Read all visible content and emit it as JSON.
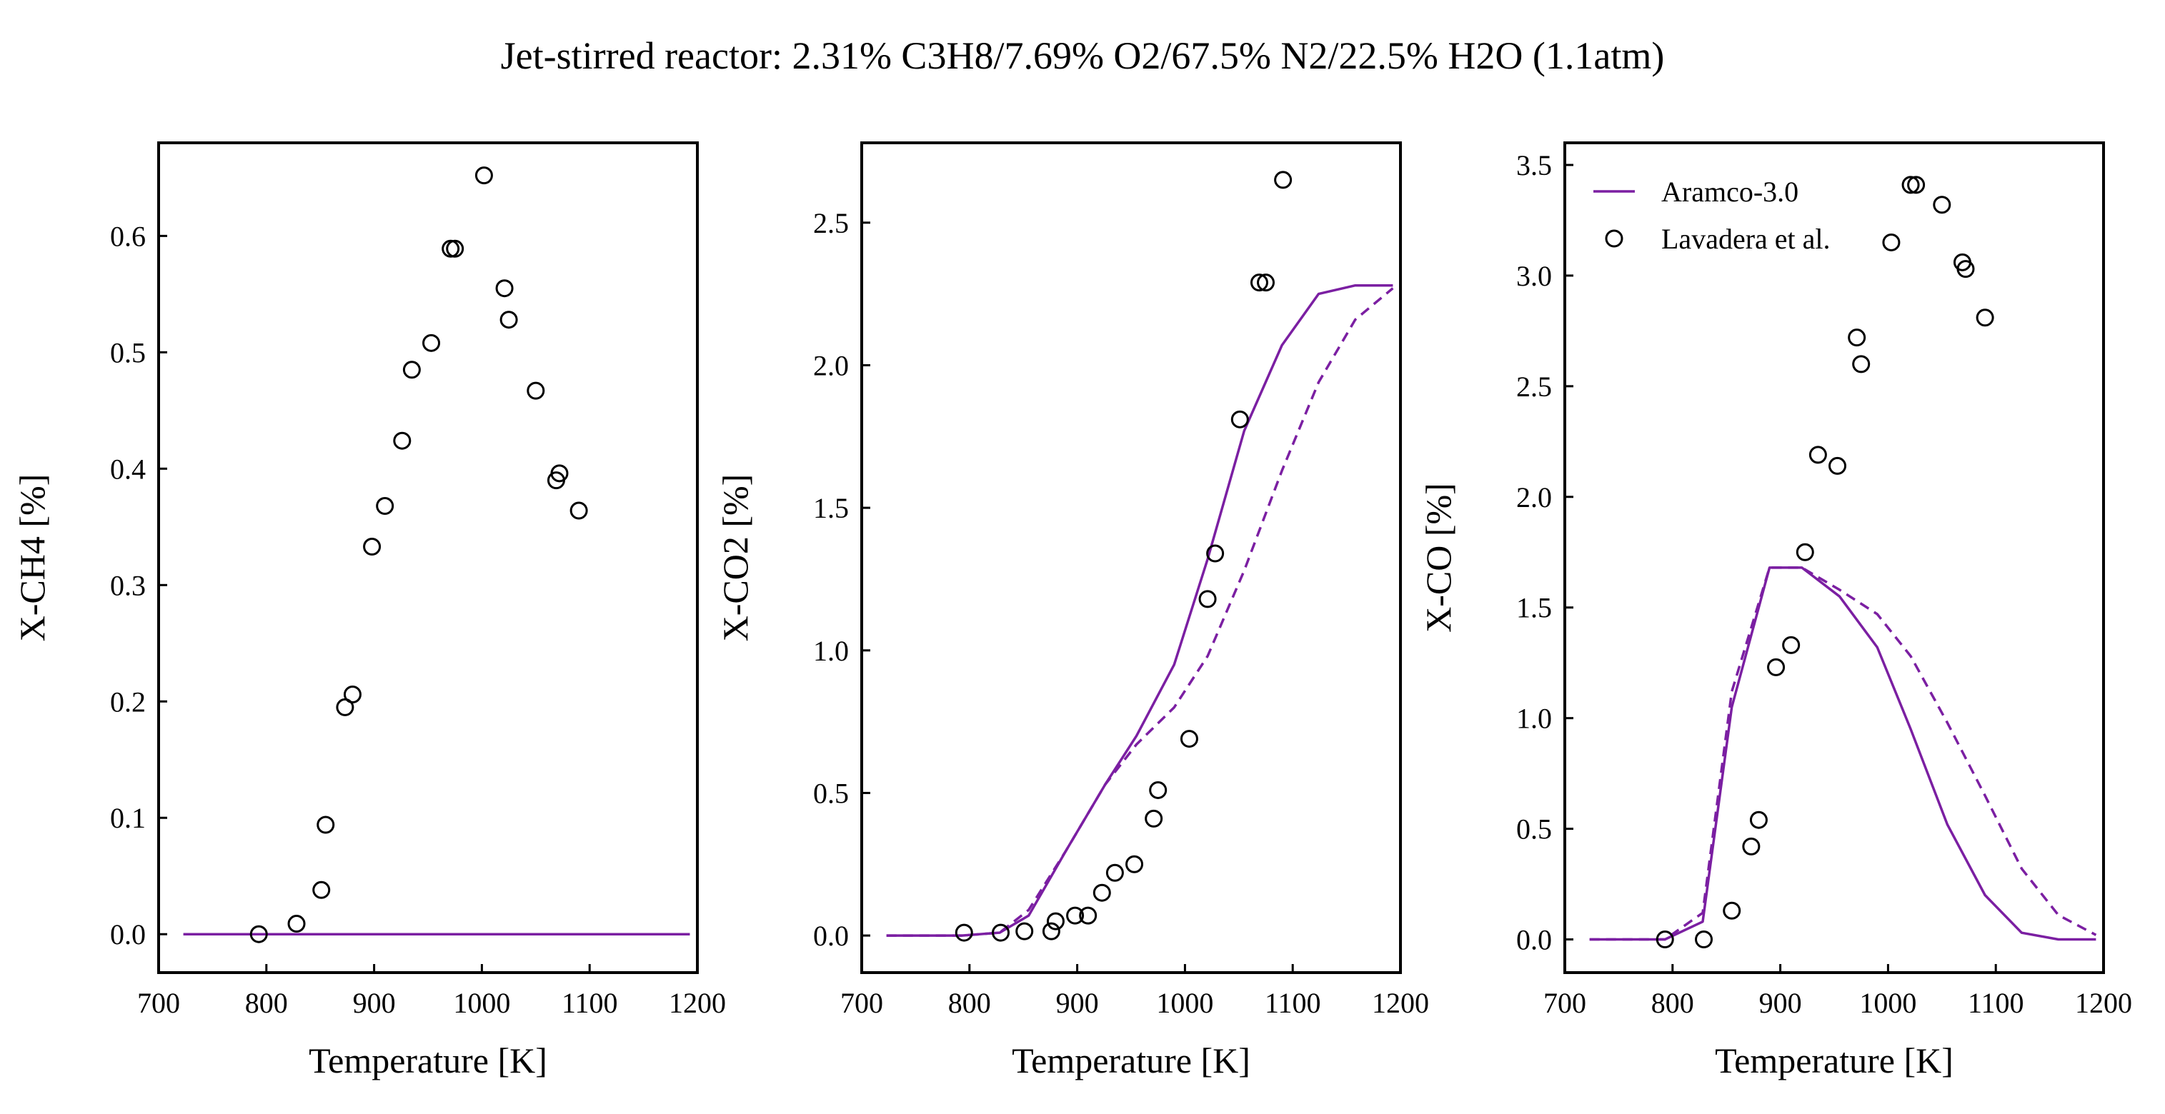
{
  "figure": {
    "title": "Jet-stirred reactor: 2.31% C3H8/7.69% O2/67.5% N2/22.5% H2O (1.1atm)"
  },
  "colors": {
    "model": "#7b1fa2",
    "exp": "#000000"
  },
  "legend": {
    "position": "top-left",
    "panel": 3,
    "entries": [
      "Aramco-3.0",
      "Lavadera et al."
    ]
  },
  "chart_data": [
    {
      "type": "line",
      "ylabel": "X-CH4 [%]",
      "xlabel": "Temperature [K]",
      "xlim": [
        700,
        1200
      ],
      "ylim": [
        -0.033,
        0.68
      ],
      "xticks": [
        700,
        800,
        900,
        1000,
        1100,
        1200
      ],
      "yticks": [
        0.0,
        0.1,
        0.2,
        0.3,
        0.4,
        0.5,
        0.6
      ],
      "grid": false,
      "series": [
        {
          "name": "Aramco-3.0",
          "style": "solid",
          "x": [
            723,
            760,
            800,
            850,
            900,
            950,
            1000,
            1050,
            1100,
            1150,
            1193
          ],
          "y": [
            0,
            0,
            0,
            0,
            0,
            0,
            0,
            0,
            0,
            0,
            0
          ]
        },
        {
          "style": "solid",
          "x": [
            723,
            760,
            800,
            850,
            900,
            950,
            1000,
            1050,
            1100,
            1150,
            1193
          ],
          "y": [
            0,
            0,
            0,
            0,
            0,
            0,
            0,
            0,
            0,
            0,
            0
          ]
        },
        {
          "name": "Lavadera et al.",
          "style": "marker",
          "x": [
            793,
            828,
            851,
            855,
            873,
            880,
            898,
            910,
            926,
            935,
            953,
            971,
            975,
            1002,
            1021,
            1025,
            1050,
            1069,
            1072,
            1090
          ],
          "y": [
            0.0,
            0.009,
            0.038,
            0.094,
            0.195,
            0.206,
            0.333,
            0.368,
            0.424,
            0.485,
            0.508,
            0.589,
            0.589,
            0.652,
            0.555,
            0.528,
            0.467,
            0.39,
            0.396,
            0.364
          ]
        }
      ]
    },
    {
      "type": "line",
      "ylabel": "X-CO2 [%]",
      "xlabel": "Temperature [K]",
      "xlim": [
        700,
        1200
      ],
      "ylim": [
        -0.13,
        2.78
      ],
      "xticks": [
        700,
        800,
        900,
        1000,
        1100,
        1200
      ],
      "yticks": [
        0.0,
        0.5,
        1.0,
        1.5,
        2.0,
        2.5
      ],
      "grid": false,
      "series": [
        {
          "name": "Aramco-3.0",
          "style": "solid",
          "x": [
            723,
            760,
            793,
            828,
            855,
            890,
            926,
            955,
            990,
            1021,
            1055,
            1090,
            1124,
            1158,
            1193
          ],
          "y": [
            0,
            0,
            0,
            0.01,
            0.07,
            0.3,
            0.53,
            0.7,
            0.95,
            1.32,
            1.77,
            2.07,
            2.25,
            2.28,
            2.28
          ]
        },
        {
          "style": "dashed",
          "x": [
            723,
            760,
            793,
            828,
            855,
            890,
            926,
            955,
            990,
            1021,
            1055,
            1090,
            1124,
            1158,
            1193
          ],
          "y": [
            0,
            0,
            0,
            0.01,
            0.09,
            0.3,
            0.53,
            0.67,
            0.8,
            0.98,
            1.28,
            1.63,
            1.94,
            2.16,
            2.27
          ]
        },
        {
          "name": "Lavadera et al.",
          "style": "marker",
          "x": [
            795,
            829,
            851,
            876,
            880,
            898,
            910,
            923,
            935,
            953,
            971,
            975,
            1004,
            1021,
            1028,
            1051,
            1069,
            1075,
            1091
          ],
          "y": [
            0.01,
            0.01,
            0.015,
            0.015,
            0.05,
            0.07,
            0.07,
            0.15,
            0.22,
            0.25,
            0.41,
            0.51,
            0.69,
            1.18,
            1.34,
            1.81,
            2.29,
            2.29,
            2.65
          ]
        }
      ]
    },
    {
      "type": "line",
      "ylabel": "X-CO [%]",
      "xlabel": "Temperature [K]",
      "xlim": [
        700,
        1200
      ],
      "ylim": [
        -0.15,
        3.6
      ],
      "xticks": [
        700,
        800,
        900,
        1000,
        1100,
        1200
      ],
      "yticks": [
        0.0,
        0.5,
        1.0,
        1.5,
        2.0,
        2.5,
        3.0,
        3.5
      ],
      "grid": false,
      "series": [
        {
          "name": "Aramco-3.0",
          "style": "solid",
          "x": [
            723,
            760,
            793,
            828,
            855,
            890,
            920,
            955,
            990,
            1021,
            1055,
            1090,
            1124,
            1158,
            1193
          ],
          "y": [
            0,
            0,
            0,
            0.08,
            1.05,
            1.68,
            1.68,
            1.55,
            1.32,
            0.95,
            0.52,
            0.2,
            0.03,
            0.0,
            0.0
          ]
        },
        {
          "style": "dashed",
          "x": [
            723,
            760,
            793,
            828,
            855,
            890,
            920,
            955,
            990,
            1021,
            1055,
            1090,
            1124,
            1158,
            1193
          ],
          "y": [
            0,
            0,
            0,
            0.12,
            1.12,
            1.68,
            1.68,
            1.58,
            1.47,
            1.28,
            0.98,
            0.65,
            0.32,
            0.11,
            0.02
          ]
        },
        {
          "name": "Lavadera et al.",
          "style": "marker",
          "x": [
            793,
            829,
            855,
            873,
            880,
            896,
            910,
            923,
            935,
            953,
            971,
            975,
            1003,
            1021,
            1026,
            1050,
            1069,
            1072,
            1090
          ],
          "y": [
            0.0,
            0.0,
            0.13,
            0.42,
            0.54,
            1.23,
            1.33,
            1.75,
            2.19,
            2.14,
            2.72,
            2.6,
            3.15,
            3.41,
            3.41,
            3.32,
            3.06,
            3.03,
            2.81
          ]
        }
      ]
    }
  ]
}
